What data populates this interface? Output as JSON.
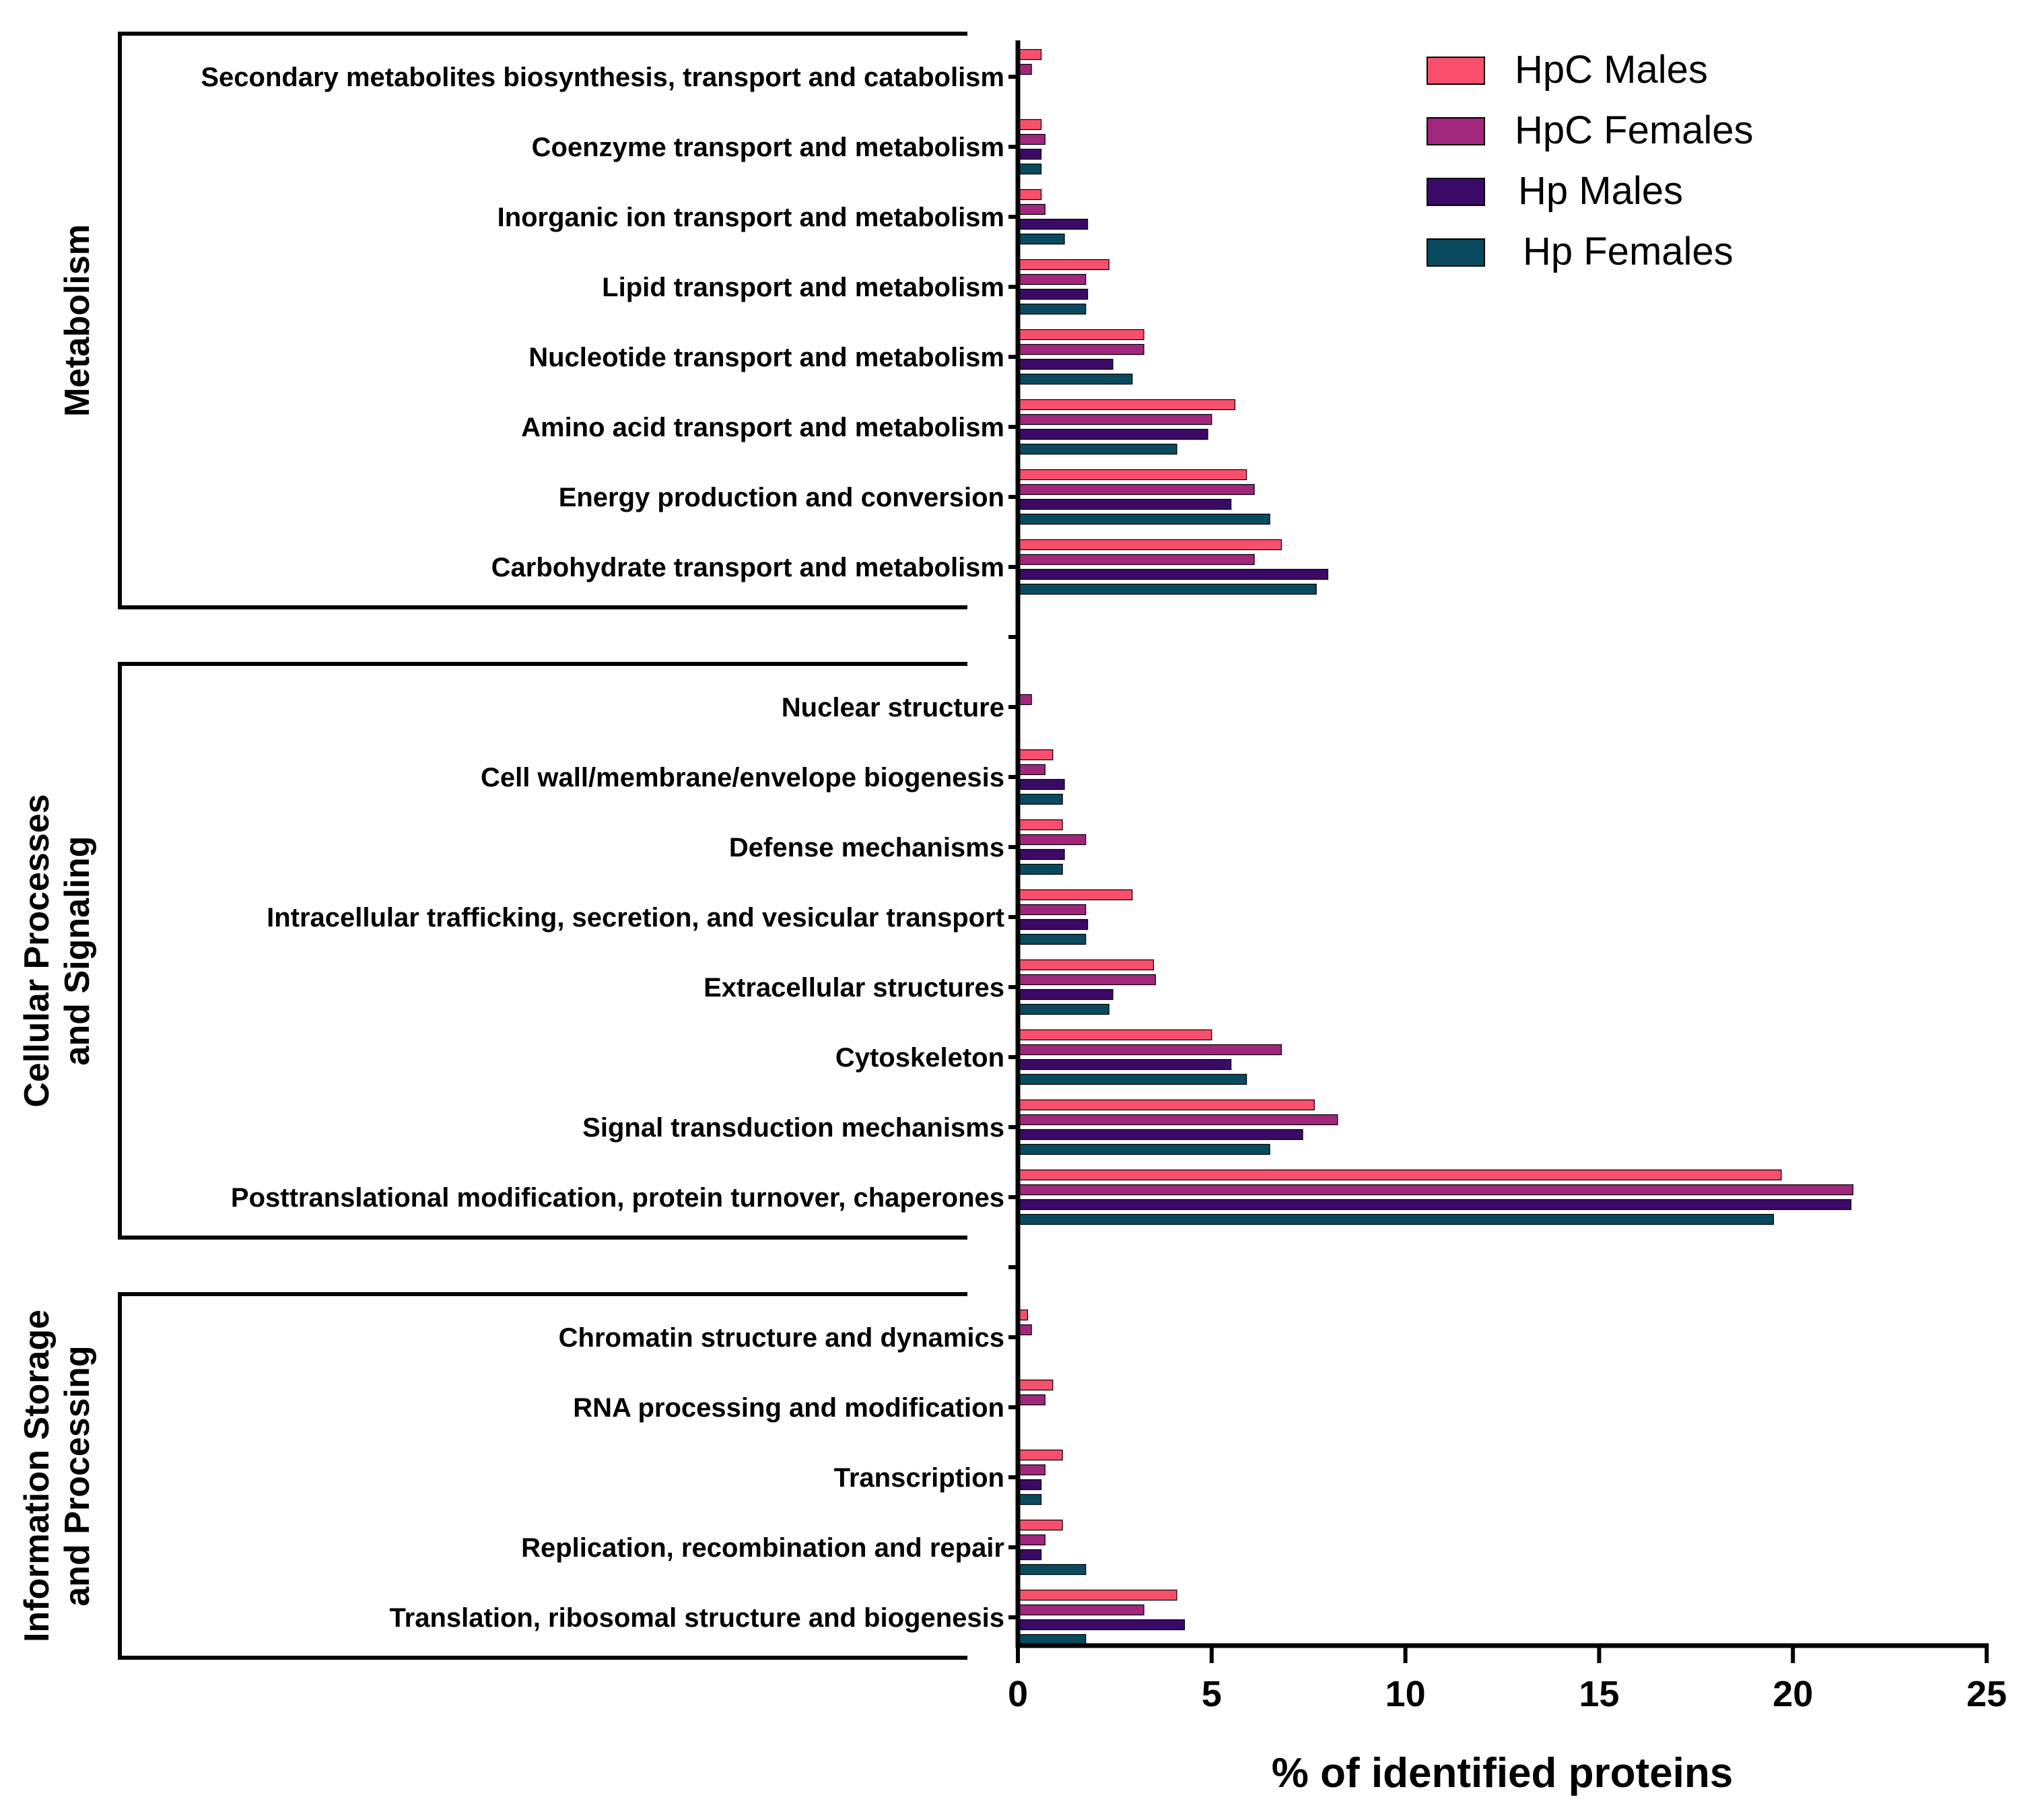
{
  "chart_data": {
    "type": "bar",
    "orientation": "horizontal",
    "xlabel": "% of identified proteins",
    "xlim": [
      0,
      25
    ],
    "xticks": [
      0,
      5,
      10,
      15,
      20,
      25
    ],
    "legend_position": "top-right",
    "series": [
      {
        "name": "HpC Males",
        "color": "#f8506c"
      },
      {
        "name": "HpC Females",
        "color": "#a1277c"
      },
      {
        "name": "Hp Males",
        "color": "#3b0a67"
      },
      {
        "name": "Hp Females",
        "color": "#0a4a5e"
      }
    ],
    "groups": [
      {
        "name": "Metabolism",
        "label_lines": [
          "Metabolism"
        ],
        "categories": [
          {
            "label": "Secondary metabolites biosynthesis, transport and catabolism",
            "values": [
              0.6,
              0.35,
              0,
              0
            ]
          },
          {
            "label": "Coenzyme transport and metabolism",
            "values": [
              0.6,
              0.7,
              0.6,
              0.6
            ]
          },
          {
            "label": "Inorganic ion transport and metabolism",
            "values": [
              0.6,
              0.7,
              1.8,
              1.2
            ]
          },
          {
            "label": "Lipid transport and metabolism",
            "values": [
              2.35,
              1.75,
              1.8,
              1.75
            ]
          },
          {
            "label": "Nucleotide transport and metabolism",
            "values": [
              3.25,
              3.25,
              2.45,
              2.95
            ]
          },
          {
            "label": "Amino acid transport and metabolism",
            "values": [
              5.6,
              5.0,
              4.9,
              4.1
            ]
          },
          {
            "label": "Energy production and conversion",
            "values": [
              5.9,
              6.1,
              5.5,
              6.5
            ]
          },
          {
            "label": "Carbohydrate transport and metabolism",
            "values": [
              6.8,
              6.1,
              8.0,
              7.7
            ]
          }
        ]
      },
      {
        "name": "Cellular Processes and Signaling",
        "label_lines": [
          "Cellular Processes",
          "and Signaling"
        ],
        "categories": [
          {
            "label": "Nuclear structure",
            "values": [
              0,
              0.35,
              0,
              0
            ]
          },
          {
            "label": "Cell wall/membrane/envelope biogenesis",
            "values": [
              0.9,
              0.7,
              1.2,
              1.15
            ]
          },
          {
            "label": "Defense mechanisms",
            "values": [
              1.15,
              1.75,
              1.2,
              1.15
            ]
          },
          {
            "label": "Intracellular trafficking, secretion, and vesicular transport",
            "values": [
              2.95,
              1.75,
              1.8,
              1.75
            ]
          },
          {
            "label": "Extracellular structures",
            "values": [
              3.5,
              3.55,
              2.45,
              2.35
            ]
          },
          {
            "label": "Cytoskeleton",
            "values": [
              5.0,
              6.8,
              5.5,
              5.9
            ]
          },
          {
            "label": "Signal transduction mechanisms",
            "values": [
              7.65,
              8.25,
              7.35,
              6.5
            ]
          },
          {
            "label": "Posttranslational modification, protein turnover, chaperones",
            "values": [
              19.7,
              21.55,
              21.5,
              19.5
            ]
          }
        ]
      },
      {
        "name": "Information Storage and Processing",
        "label_lines": [
          "Information Storage",
          "and Processing"
        ],
        "categories": [
          {
            "label": "Chromatin structure and dynamics",
            "values": [
              0.25,
              0.35,
              0,
              0
            ]
          },
          {
            "label": "RNA processing and modification",
            "values": [
              0.9,
              0.7,
              0,
              0
            ]
          },
          {
            "label": "Transcription",
            "values": [
              1.15,
              0.7,
              0.6,
              0.6
            ]
          },
          {
            "label": "Replication, recombination and repair",
            "values": [
              1.15,
              0.7,
              0.6,
              1.75
            ]
          },
          {
            "label": "Translation, ribosomal structure and biogenesis",
            "values": [
              4.1,
              3.25,
              4.3,
              1.75
            ]
          }
        ]
      }
    ]
  }
}
